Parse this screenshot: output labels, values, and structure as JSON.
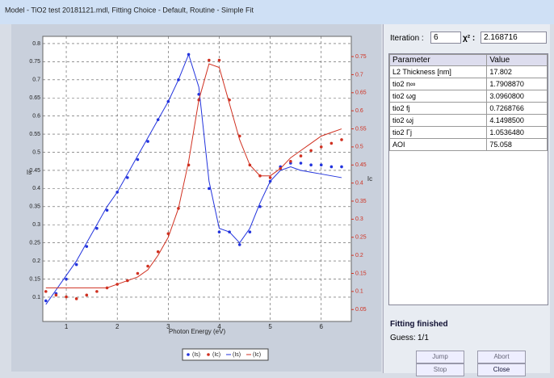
{
  "window": {
    "title": "Model - TiO2  test 20181121.mdl,  Fitting Choice - Default,  Routine - Simple Fit"
  },
  "chart_data": {
    "type": "scatter",
    "xlabel": "Photon Energy (eV)",
    "ylabel": "Is",
    "y2label": "Ic",
    "x": [
      0.6,
      0.8,
      1.0,
      1.2,
      1.4,
      1.6,
      1.8,
      2.0,
      2.2,
      2.4,
      2.6,
      2.8,
      3.0,
      3.2,
      3.4,
      3.6,
      3.8,
      4.0,
      4.2,
      4.4,
      4.6,
      4.8,
      5.0,
      5.2,
      5.4,
      5.6,
      5.8,
      6.0,
      6.2,
      6.4
    ],
    "series": [
      {
        "name": "(Is)",
        "color": "#2233dd",
        "mode": "markers",
        "values": [
          0.09,
          0.11,
          0.15,
          0.19,
          0.24,
          0.29,
          0.34,
          0.39,
          0.43,
          0.48,
          0.53,
          0.59,
          0.64,
          0.7,
          0.77,
          0.66,
          0.4,
          0.28,
          0.28,
          0.245,
          0.28,
          0.35,
          0.42,
          0.46,
          0.47,
          0.47,
          0.465,
          0.465,
          0.46,
          0.46
        ]
      },
      {
        "name": "(Ic)",
        "color": "#d03020",
        "mode": "markers",
        "axis": "y2",
        "values": [
          0.1,
          0.09,
          0.085,
          0.08,
          0.09,
          0.1,
          0.11,
          0.12,
          0.13,
          0.15,
          0.17,
          0.21,
          0.26,
          0.33,
          0.45,
          0.63,
          0.74,
          0.74,
          0.63,
          0.53,
          0.45,
          0.42,
          0.415,
          0.44,
          0.46,
          0.475,
          0.49,
          0.5,
          0.51,
          0.52
        ]
      },
      {
        "name": "(Is)",
        "color": "#2233dd",
        "mode": "line",
        "values": [
          0.08,
          0.12,
          0.16,
          0.2,
          0.25,
          0.3,
          0.35,
          0.39,
          0.44,
          0.49,
          0.54,
          0.59,
          0.64,
          0.7,
          0.77,
          0.68,
          0.42,
          0.29,
          0.28,
          0.25,
          0.29,
          0.36,
          0.42,
          0.45,
          0.46,
          0.45,
          0.445,
          0.44,
          0.435,
          0.43
        ]
      },
      {
        "name": "(Ic)",
        "color": "#d03020",
        "mode": "line",
        "axis": "y2",
        "values": [
          0.11,
          0.11,
          0.11,
          0.11,
          0.11,
          0.11,
          0.11,
          0.12,
          0.13,
          0.14,
          0.16,
          0.2,
          0.25,
          0.33,
          0.46,
          0.63,
          0.73,
          0.72,
          0.62,
          0.52,
          0.45,
          0.42,
          0.42,
          0.44,
          0.47,
          0.49,
          0.51,
          0.53,
          0.54,
          0.55
        ]
      }
    ],
    "xlim": [
      0.54,
      6.59
    ],
    "xticks": [
      1,
      2,
      3,
      4,
      5,
      6
    ],
    "ylim": [
      0.033,
      0.82
    ],
    "yticks": [
      0.1,
      0.15,
      0.2,
      0.25,
      0.3,
      0.35,
      0.4,
      0.45,
      0.5,
      0.55,
      0.6,
      0.65,
      0.7,
      0.75,
      0.8
    ],
    "y2lim": [
      0.017,
      0.806
    ],
    "y2ticks": [
      0.05,
      0.1,
      0.15,
      0.2,
      0.25,
      0.3,
      0.35,
      0.4,
      0.45,
      0.5,
      0.55,
      0.6,
      0.65,
      0.7,
      0.75
    ],
    "grid": true
  },
  "fit_panel": {
    "iteration_label": "Iteration :",
    "iteration": "6",
    "chi_label": "χ² :",
    "chi": "2.168716",
    "table": {
      "header": [
        "Parameter",
        "Value"
      ],
      "rows": [
        [
          "L2 Thickness [nm]",
          "17.802"
        ],
        [
          "tio2 n∞",
          "1.7908870"
        ],
        [
          "tio2 ωg",
          "3.0960800"
        ],
        [
          "tio2 fj",
          "0.7268766"
        ],
        [
          "tio2 ωj",
          "4.1498500"
        ],
        [
          "tio2 Γj",
          "1.0536480"
        ],
        [
          "AOI",
          "75.058"
        ]
      ]
    },
    "status": "Fitting finished",
    "guess_label": "Guess:",
    "guess": "1/1",
    "buttons": [
      "Jump",
      "Abort",
      "Stop",
      "Close"
    ]
  }
}
